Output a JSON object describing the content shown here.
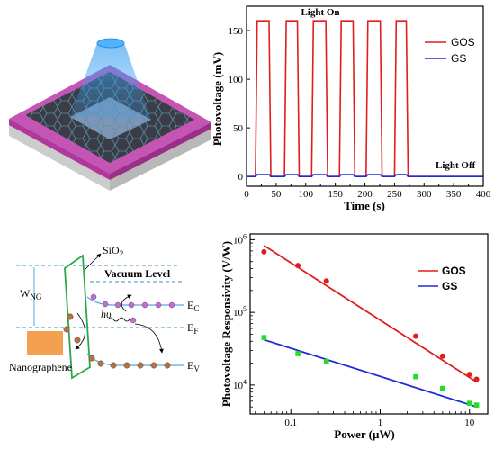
{
  "chart_data": [
    {
      "type": "line",
      "title": "",
      "xlabel": "Time (s)",
      "ylabel": "Photovoltage (mV)",
      "xlim": [
        0,
        400
      ],
      "ylim": [
        -10,
        175
      ],
      "x_ticks": [
        "0",
        "50",
        "100",
        "150",
        "200",
        "250",
        "300",
        "350",
        "400"
      ],
      "y_ticks": [
        "0",
        "50",
        "100",
        "150"
      ],
      "legend_position": "top-right",
      "series": [
        {
          "name": "GOS",
          "color": "#e11d1d",
          "x": [
            0,
            15,
            18,
            38,
            41,
            64,
            67,
            86,
            89,
            110,
            113,
            134,
            137,
            157,
            160,
            180,
            183,
            202,
            205,
            226,
            229,
            250,
            253,
            270,
            273,
            294,
            297,
            400
          ],
          "y": [
            0,
            0,
            160,
            160,
            0,
            0,
            160,
            160,
            0,
            0,
            160,
            160,
            0,
            0,
            160,
            160,
            0,
            0,
            160,
            160,
            0,
            0,
            160,
            160,
            0,
            0,
            0,
            0
          ]
        },
        {
          "name": "GS",
          "color": "#1d2dd6",
          "x": [
            0,
            15,
            18,
            38,
            41,
            64,
            67,
            86,
            89,
            110,
            113,
            134,
            137,
            157,
            160,
            180,
            183,
            202,
            205,
            226,
            229,
            250,
            253,
            270,
            273,
            294,
            297,
            400
          ],
          "y": [
            0,
            0,
            2,
            2,
            0,
            0,
            2,
            2,
            0,
            0,
            2,
            2,
            0,
            0,
            2,
            2,
            0,
            0,
            2,
            2,
            0,
            0,
            2,
            2,
            0,
            0,
            0,
            0
          ]
        }
      ],
      "annotations": [
        "Light On",
        "Light Off"
      ]
    },
    {
      "type": "scatter",
      "title": "",
      "xlabel": "Power (μW)",
      "ylabel": "Photovoltage Responsivity (V/W)",
      "x_scale": "log",
      "y_scale": "log",
      "xlim": [
        0.035,
        16
      ],
      "ylim": [
        4000,
        1200000
      ],
      "x_ticks": [
        "0.1",
        "1",
        "10"
      ],
      "y_ticks": [
        "10^4",
        "10^5",
        "10^6"
      ],
      "legend_position": "top-right",
      "series": [
        {
          "name": "GOS",
          "color": "#e11d1d",
          "x": [
            0.05,
            0.12,
            0.25,
            2.5,
            5,
            10,
            12
          ],
          "y": [
            680000,
            440000,
            270000,
            47000,
            25000,
            14000,
            12000
          ],
          "fit": {
            "x": [
              0.05,
              12
            ],
            "y": [
              830000,
              11000
            ]
          }
        },
        {
          "name": "GS",
          "color": "#1d2dd6",
          "marker_color": "#22dd22",
          "x": [
            0.05,
            0.12,
            0.25,
            2.5,
            5,
            10,
            12
          ],
          "y": [
            45000,
            27000,
            21000,
            13000,
            9000,
            5600,
            5300
          ],
          "fit": {
            "x": [
              0.05,
              12
            ],
            "y": [
              42000,
              5000
            ]
          }
        }
      ]
    }
  ],
  "band_diagram": {
    "sio2": "SiO",
    "sio2_sub": "2",
    "vacuum_level": "Vacuum Level",
    "w": "W",
    "w_sub": "NG",
    "h_nu": "hυ",
    "ec": "E",
    "ec_sub": "C",
    "ef": "E",
    "ef_sub": "F",
    "ev": "E",
    "ev_sub": "V",
    "nanographene": "Nanographene"
  }
}
